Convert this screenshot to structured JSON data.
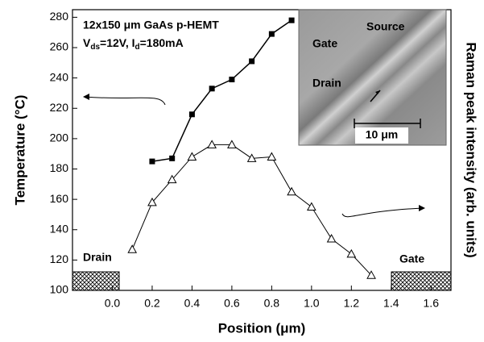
{
  "chart_data": {
    "type": "line",
    "title_parts": [
      "12x150 μm GaAs p-HEMT"
    ],
    "subtitle_parts": [
      "V",
      "ds",
      "=12V, I",
      "d",
      "=180mA"
    ],
    "x_label": "Position (μm)",
    "y_label": "Temperature (°C)",
    "y2_label": "Raman peak intensity (arb. units)",
    "xlim": [
      -0.2,
      1.7
    ],
    "ylim": [
      100,
      285
    ],
    "xticks": [
      {
        "value": 0,
        "label": "0.0"
      },
      0.2,
      0.4,
      0.6,
      0.8,
      {
        "value": 1,
        "label": "1.0"
      },
      1.2,
      1.4,
      1.6
    ],
    "yticks": [
      100,
      120,
      140,
      160,
      180,
      200,
      220,
      240,
      260,
      280
    ],
    "series": [
      {
        "name": "Temperature",
        "color": "#000000",
        "marker": "square",
        "x": [
          0.2,
          0.3,
          0.4,
          0.5,
          0.6,
          0.7,
          0.8,
          0.9
        ],
        "values": [
          185,
          187,
          216,
          233,
          239,
          251,
          269,
          278
        ]
      },
      {
        "name": "Raman peak intensity",
        "color": "#000000",
        "marker": "triangle",
        "x": [
          0.1,
          0.2,
          0.3,
          0.4,
          0.5,
          0.6,
          0.7,
          0.8,
          0.9,
          1.0,
          1.1,
          1.2,
          1.3
        ],
        "values": [
          127,
          158,
          173,
          188,
          196,
          196,
          187,
          188,
          165,
          155,
          134,
          124,
          110
        ]
      }
    ],
    "region_labels": [
      "Drain",
      "Gate"
    ],
    "inset_labels": [
      "Source",
      "Gate",
      "Drain",
      "10 μm"
    ]
  }
}
